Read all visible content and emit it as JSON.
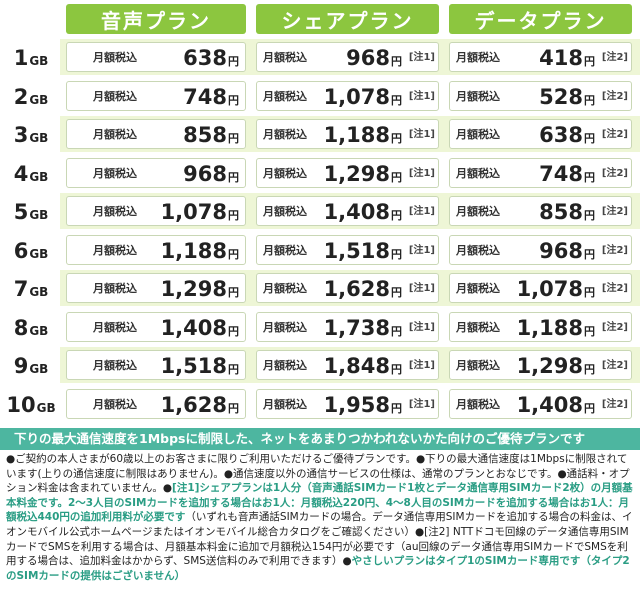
{
  "headers": [
    {
      "label": "音声プラン"
    },
    {
      "label": "シェアプラン"
    },
    {
      "label": "データプラン"
    }
  ],
  "price_label": "月額税込",
  "yen": "円",
  "rows": [
    {
      "gb": "1",
      "unit": "GB",
      "voice": "638",
      "share": "968",
      "share_note": "[注1]",
      "data": "418",
      "data_note": "[注2]"
    },
    {
      "gb": "2",
      "unit": "GB",
      "voice": "748",
      "share": "1,078",
      "share_note": "[注1]",
      "data": "528",
      "data_note": "[注2]"
    },
    {
      "gb": "3",
      "unit": "GB",
      "voice": "858",
      "share": "1,188",
      "share_note": "[注1]",
      "data": "638",
      "data_note": "[注2]"
    },
    {
      "gb": "4",
      "unit": "GB",
      "voice": "968",
      "share": "1,298",
      "share_note": "[注1]",
      "data": "748",
      "data_note": "[注2]"
    },
    {
      "gb": "5",
      "unit": "GB",
      "voice": "1,078",
      "share": "1,408",
      "share_note": "[注1]",
      "data": "858",
      "data_note": "[注2]"
    },
    {
      "gb": "6",
      "unit": "GB",
      "voice": "1,188",
      "share": "1,518",
      "share_note": "[注1]",
      "data": "968",
      "data_note": "[注2]"
    },
    {
      "gb": "7",
      "unit": "GB",
      "voice": "1,298",
      "share": "1,628",
      "share_note": "[注1]",
      "data": "1,078",
      "data_note": "[注2]"
    },
    {
      "gb": "8",
      "unit": "GB",
      "voice": "1,408",
      "share": "1,738",
      "share_note": "[注1]",
      "data": "1,188",
      "data_note": "[注2]"
    },
    {
      "gb": "9",
      "unit": "GB",
      "voice": "1,518",
      "share": "1,848",
      "share_note": "[注1]",
      "data": "1,298",
      "data_note": "[注2]"
    },
    {
      "gb": "10",
      "unit": "GB",
      "voice": "1,628",
      "share": "1,958",
      "share_note": "[注1]",
      "data": "1,408",
      "data_note": "[注2]"
    }
  ],
  "banner": "下りの最大通信速度を1Mbpsに制限した、ネットをあまりつかわれないかた向けのご優待プランです",
  "notes": [
    {
      "text": "●ご契約の本人さまが60歳以上のお客さまに限りご利用いただけるご優待プランです。●下りの最大通信速度は1Mbpsに制限されています(上りの通信速度に制限はありません)。●通信速度以外の通信サービスの仕様は、通常のプランとおなじです。●通話料・オプション料金は含まれていません。●",
      "hl": false
    },
    {
      "text": "[注1]シェアプランは1人分（音声通話SIMカード1枚とデータ通信専用SIMカード2枚）の月額基本料金です。2～3人目のSIMカードを追加する場合はお1人：月額税込220円、4～8人目のSIMカードを追加する場合はお1人：月額税込440円の追加利用料が必要です",
      "hl": true
    },
    {
      "text": "（いずれも音声通話SIMカードの場合。データ通信専用SIMカードを追加する場合の料金は、イオンモバイル公式ホームページまたはイオンモバイル総合カタログをご確認ください）●[注2] NTTドコモ回線のデータ通信専用SIMカードでSMSを利用する場合は、月額基本料金に追加で月額税込154円が必要です（au回線のデータ通信専用SIMカードでSMSを利用する場合は、追加料金はかからず、SMS送信料のみで利用できます）●",
      "hl": false
    },
    {
      "text": "やさしいプランはタイプ1のSIMカード専用です（タイプ2のSIMカードの提供はございません）",
      "hl": true
    }
  ]
}
